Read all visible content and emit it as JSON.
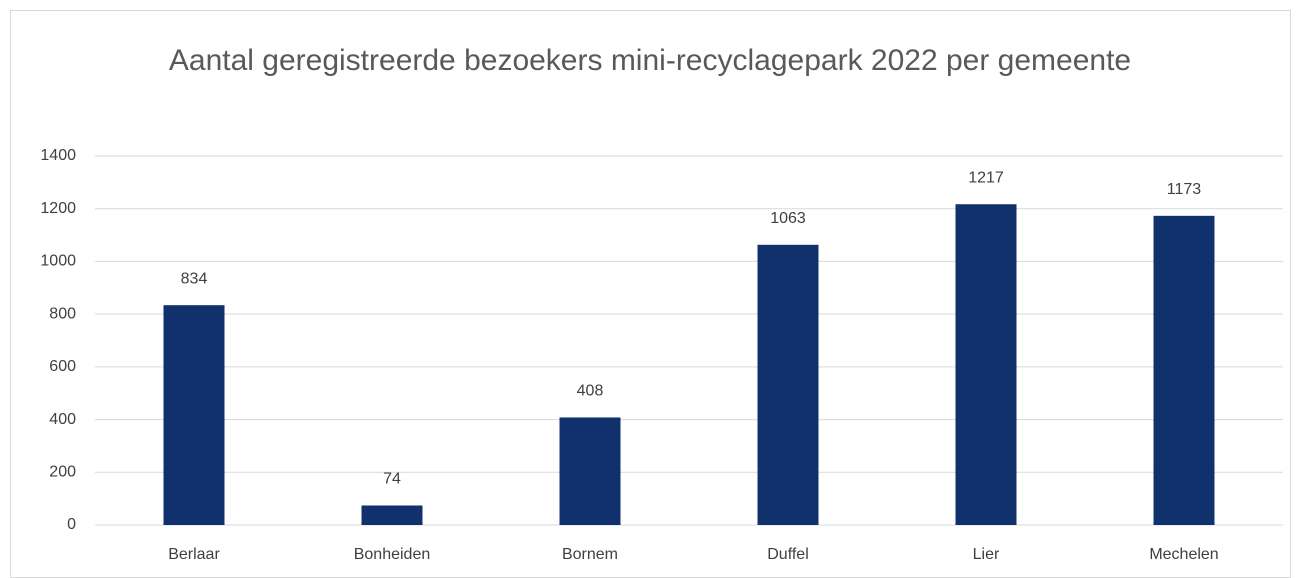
{
  "chart_data": {
    "type": "bar",
    "title": "Aantal geregistreerde bezoekers mini-recyclagepark 2022 per gemeente",
    "categories": [
      "Berlaar",
      "Bonheiden",
      "Bornem",
      "Duffel",
      "Lier",
      "Mechelen"
    ],
    "values": [
      834,
      74,
      408,
      1063,
      1217,
      1173
    ],
    "color": "#10316b",
    "ylim": [
      0,
      1400
    ],
    "yticks": [
      0,
      200,
      400,
      600,
      800,
      1000,
      1200,
      1400
    ],
    "grid": true
  }
}
